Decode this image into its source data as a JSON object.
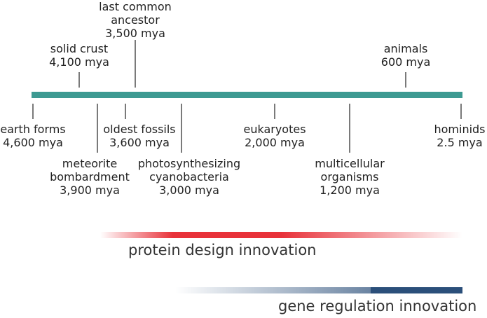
{
  "timeline": {
    "axis_color": "#3d9a92",
    "events_above": [
      {
        "id": "solid-crust",
        "lines": [
          "solid crust",
          "4,100 mya"
        ]
      },
      {
        "id": "last-common-ancestor",
        "lines": [
          "last common",
          "ancestor",
          "3,500 mya"
        ]
      },
      {
        "id": "animals",
        "lines": [
          "animals",
          "600 mya"
        ]
      }
    ],
    "events_below": [
      {
        "id": "earth-forms",
        "lines": [
          "earth forms",
          "4,600 mya"
        ]
      },
      {
        "id": "meteorite-bombardment",
        "lines": [
          "meteorite",
          "bombardment",
          "3,900 mya"
        ]
      },
      {
        "id": "oldest-fossils",
        "lines": [
          "oldest fossils",
          "3,600 mya"
        ]
      },
      {
        "id": "photosynthesizing-cyanobacteria",
        "lines": [
          "photosynthesizing",
          "cyanobacteria",
          "3,000 mya"
        ]
      },
      {
        "id": "eukaryotes",
        "lines": [
          "eukaryotes",
          "2,000 mya"
        ]
      },
      {
        "id": "multicellular-organisms",
        "lines": [
          "multicellular",
          "organisms",
          "1,200 mya"
        ]
      },
      {
        "id": "hominids",
        "lines": [
          "hominids",
          "2.5 mya"
        ]
      }
    ]
  },
  "bands": [
    {
      "id": "protein-design",
      "label": "protein design innovation",
      "color": "#e8323a"
    },
    {
      "id": "gene-regulation",
      "label": "gene regulation innovation",
      "color": "#2b4f7a"
    }
  ]
}
